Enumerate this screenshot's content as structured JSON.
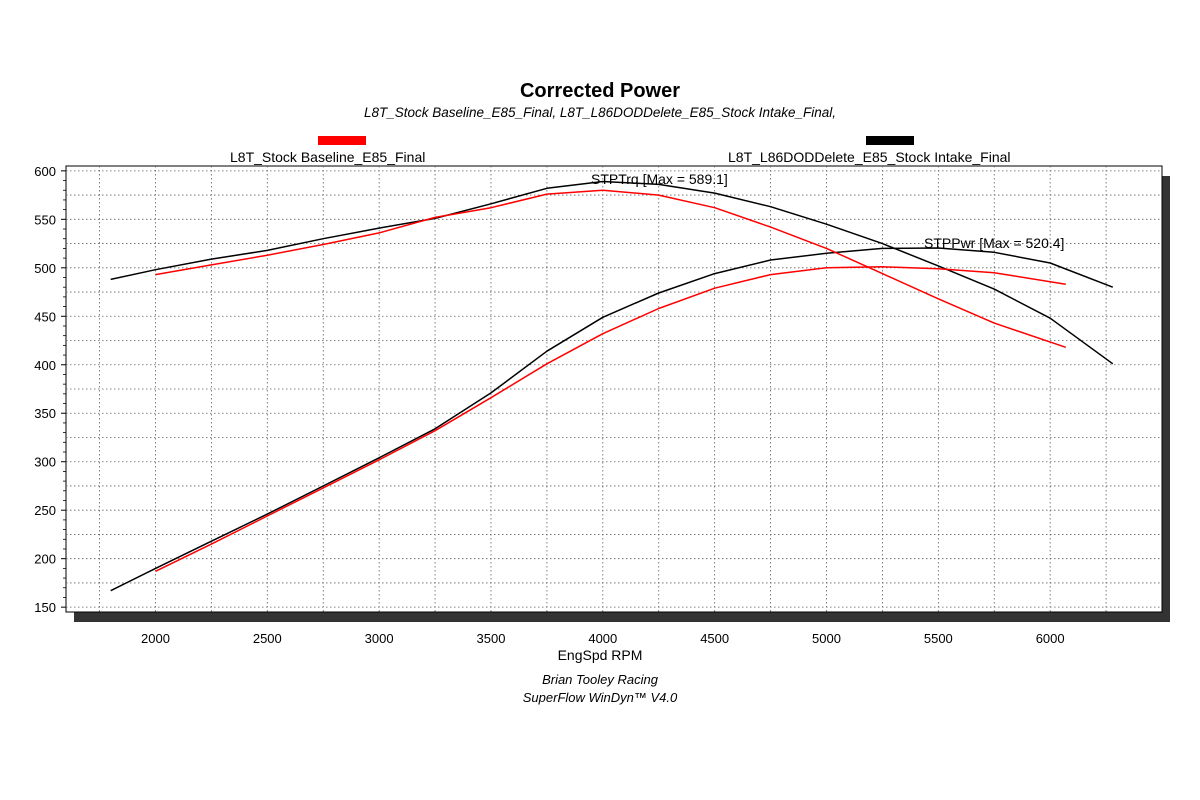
{
  "chart_data": {
    "type": "line",
    "title": "Corrected Power",
    "subtitle": "L8T_Stock Baseline_E85_Final, L8T_L86DODDelete_E85_Stock Intake_Final,",
    "xlabel": "EngSpd RPM",
    "ylabel": "",
    "xlim": [
      1600,
      6500
    ],
    "ylim": [
      145,
      605
    ],
    "xticks": [
      2000,
      2500,
      3000,
      3500,
      4000,
      4500,
      5000,
      5500,
      6000
    ],
    "yticks": [
      150,
      200,
      250,
      300,
      350,
      400,
      450,
      500,
      550,
      600
    ],
    "grid": true,
    "legend": [
      {
        "name": "L8T_Stock Baseline_E85_Final",
        "color": "#ff0000"
      },
      {
        "name": "L8T_L86DODDelete_E85_Stock Intake_Final",
        "color": "#000000"
      }
    ],
    "annotations": [
      {
        "text": "STPTrq [Max = 589.1]"
      },
      {
        "text": "STPPwr [Max = 520.4]"
      }
    ],
    "series": [
      {
        "name": "L8T_L86DODDelete_E85_Stock Intake_Final STPTrq",
        "color": "#000000",
        "x": [
          1800,
          2000,
          2250,
          2500,
          2750,
          3000,
          3250,
          3500,
          3750,
          4000,
          4250,
          4500,
          4750,
          5000,
          5250,
          5500,
          5750,
          6000,
          6280
        ],
        "y": [
          488,
          498,
          509,
          518,
          530,
          541,
          551,
          566,
          582,
          589,
          586,
          577,
          563,
          545,
          525,
          502,
          478,
          448,
          401
        ]
      },
      {
        "name": "L8T_L86DODDelete_E85_Stock Intake_Final STPPwr",
        "color": "#000000",
        "x": [
          1800,
          2000,
          2250,
          2500,
          2750,
          3000,
          3250,
          3500,
          3750,
          4000,
          4250,
          4500,
          4750,
          5000,
          5250,
          5500,
          5750,
          6000,
          6280
        ],
        "y": [
          167,
          190,
          218,
          246,
          275,
          304,
          334,
          371,
          414,
          449,
          474,
          494,
          508,
          515,
          520,
          520.4,
          516,
          505,
          480
        ]
      },
      {
        "name": "L8T_Stock Baseline_E85_Final STPTrq",
        "color": "#ff0000",
        "x": [
          2000,
          2250,
          2500,
          2750,
          3000,
          3250,
          3500,
          3750,
          4000,
          4250,
          4500,
          4750,
          5000,
          5250,
          5500,
          5750,
          6070
        ],
        "y": [
          493,
          503,
          513,
          524,
          536,
          552,
          562,
          576,
          580,
          575,
          562,
          542,
          520,
          494,
          468,
          443,
          418
        ]
      },
      {
        "name": "L8T_Stock Baseline_E85_Final STPPwr",
        "color": "#ff0000",
        "x": [
          2000,
          2250,
          2500,
          2750,
          3000,
          3250,
          3500,
          3750,
          4000,
          4250,
          4500,
          4750,
          5000,
          5250,
          5500,
          5750,
          6070
        ],
        "y": [
          187,
          215,
          244,
          273,
          302,
          332,
          366,
          401,
          432,
          458,
          479,
          493,
          500,
          501,
          499,
          495,
          483
        ]
      }
    ]
  },
  "footer": {
    "line1": "Brian Tooley Racing",
    "line2": "SuperFlow WinDyn™  V4.0"
  }
}
